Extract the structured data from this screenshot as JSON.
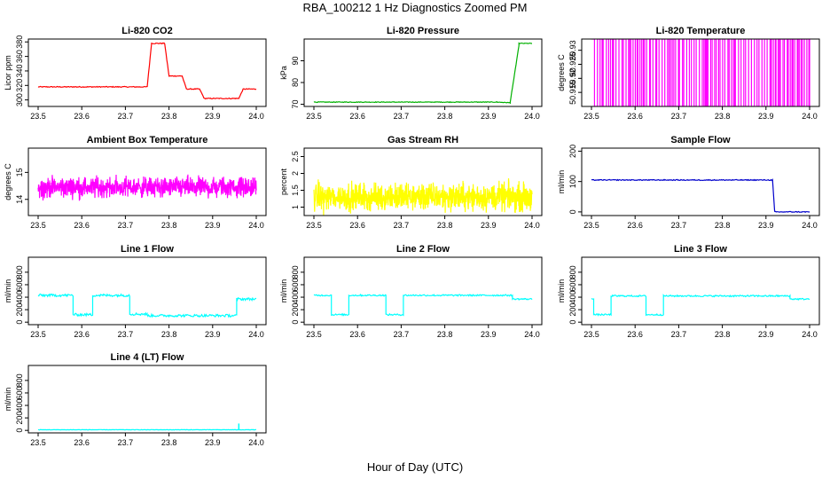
{
  "page": {
    "title": "RBA_100212  1 Hz Diagnostics Zoomed PM",
    "xlabel": "Hour of Day (UTC)"
  },
  "chart_data": [
    {
      "type": "line",
      "title": "Li-820 CO2",
      "ylabel": "Licor ppm",
      "color": "#ff0000",
      "xlim": [
        23.5,
        24.0
      ],
      "ylim": [
        291,
        384
      ],
      "xticks": [
        "23.5",
        "23.6",
        "23.7",
        "23.8",
        "23.9",
        "24.0"
      ],
      "yticks": [
        300,
        320,
        340,
        360,
        380
      ],
      "series": [
        {
          "name": "CO2",
          "noise": 0.6,
          "segments": [
            [
              23.5,
              23.75,
              318,
              318
            ],
            [
              23.75,
              23.76,
              318,
              378
            ],
            [
              23.76,
              23.79,
              378,
              378
            ],
            [
              23.79,
              23.8,
              378,
              333
            ],
            [
              23.8,
              23.83,
              333,
              333
            ],
            [
              23.83,
              23.84,
              333,
              315
            ],
            [
              23.84,
              23.87,
              315,
              315
            ],
            [
              23.87,
              23.88,
              315,
              303
            ],
            [
              23.88,
              23.96,
              302,
              302
            ],
            [
              23.96,
              23.97,
              302,
              315
            ],
            [
              23.97,
              24.0,
              315,
              315
            ]
          ]
        }
      ]
    },
    {
      "type": "line",
      "title": "Li-820 Pressure",
      "ylabel": "kPa",
      "color": "#00b000",
      "xlim": [
        23.5,
        24.0
      ],
      "ylim": [
        69,
        100
      ],
      "xticks": [
        "23.5",
        "23.6",
        "23.7",
        "23.8",
        "23.9",
        "24.0"
      ],
      "yticks": [
        70,
        80,
        90
      ],
      "series": [
        {
          "name": "Pressure",
          "noise": 0.15,
          "segments": [
            [
              23.5,
              23.92,
              71,
              71
            ],
            [
              23.92,
              23.95,
              71,
              70.7
            ],
            [
              23.95,
              23.97,
              71,
              97
            ],
            [
              23.97,
              24.0,
              98,
              98
            ]
          ]
        }
      ]
    },
    {
      "type": "line",
      "title": "Li-820 Temperature",
      "ylabel": "degrees C",
      "color": "#ff00ff",
      "xlim": [
        23.5,
        24.0
      ],
      "ylim": [
        50.91,
        50.934
      ],
      "xticks": [
        "23.5",
        "23.6",
        "23.7",
        "23.8",
        "23.9",
        "24.0"
      ],
      "yticks": [
        50.915,
        50.92,
        50.925,
        50.93
      ],
      "series": [
        {
          "name": "Temperature",
          "render": "binary",
          "low": 50.91,
          "high": 50.934
        }
      ]
    },
    {
      "type": "line",
      "title": "Ambient Box Temperature",
      "ylabel": "degrees C",
      "color": "#ff00ff",
      "xlim": [
        23.5,
        24.0
      ],
      "ylim": [
        13.4,
        15.9
      ],
      "xticks": [
        "23.5",
        "23.6",
        "23.7",
        "23.8",
        "23.9",
        "24.0"
      ],
      "yticks": [
        14.0,
        15.0
      ],
      "series": [
        {
          "name": "Box Temp",
          "render": "noise",
          "base": 14.45,
          "spread": 0.55
        }
      ]
    },
    {
      "type": "line",
      "title": "Gas Stream RH",
      "ylabel": "percent",
      "color": "#ffff00",
      "xlim": [
        23.5,
        24.0
      ],
      "ylim": [
        0.75,
        2.75
      ],
      "xticks": [
        "23.5",
        "23.6",
        "23.7",
        "23.8",
        "23.9",
        "24.0"
      ],
      "yticks": [
        1.0,
        1.5,
        2.0,
        2.5
      ],
      "series": [
        {
          "name": "RH",
          "render": "noise",
          "base": 1.3,
          "spread": 0.6
        }
      ]
    },
    {
      "type": "line",
      "title": "Sample Flow",
      "ylabel": "ml/min",
      "color": "#0000cc",
      "xlim": [
        23.5,
        24.0
      ],
      "ylim": [
        -12,
        210
      ],
      "xticks": [
        "23.5",
        "23.6",
        "23.7",
        "23.8",
        "23.9",
        "24.0"
      ],
      "yticks": [
        0,
        100,
        200
      ],
      "series": [
        {
          "name": "Sample Flow",
          "noise": 1.5,
          "segments": [
            [
              23.5,
              23.915,
              105,
              105
            ],
            [
              23.915,
              23.92,
              105,
              0
            ],
            [
              23.92,
              24.0,
              0,
              0
            ]
          ]
        }
      ]
    },
    {
      "type": "line",
      "title": "Line 1 Flow",
      "ylabel": "ml/min",
      "color": "#00ffff",
      "xlim": [
        23.5,
        24.0
      ],
      "ylim": [
        -40,
        1040
      ],
      "xticks": [
        "23.5",
        "23.6",
        "23.7",
        "23.8",
        "23.9",
        "24.0"
      ],
      "yticks": [
        0,
        200,
        400,
        600,
        800
      ],
      "series": [
        {
          "name": "Line 1",
          "noise": 20,
          "segments": [
            [
              23.5,
              23.58,
              430,
              430
            ],
            [
              23.58,
              23.625,
              120,
              120
            ],
            [
              23.625,
              23.71,
              430,
              430
            ],
            [
              23.71,
              23.75,
              130,
              130
            ],
            [
              23.75,
              23.955,
              105,
              105
            ],
            [
              23.955,
              24.0,
              370,
              370
            ]
          ]
        }
      ]
    },
    {
      "type": "line",
      "title": "Line 2 Flow",
      "ylabel": "ml/min",
      "color": "#00ffff",
      "xlim": [
        23.5,
        24.0
      ],
      "ylim": [
        -40,
        1040
      ],
      "xticks": [
        "23.5",
        "23.6",
        "23.7",
        "23.8",
        "23.9",
        "24.0"
      ],
      "yticks": [
        0,
        200,
        400,
        600,
        800
      ],
      "series": [
        {
          "name": "Line 2",
          "noise": 12,
          "segments": [
            [
              23.5,
              23.54,
              430,
              430
            ],
            [
              23.54,
              23.58,
              120,
              120
            ],
            [
              23.58,
              23.665,
              430,
              430
            ],
            [
              23.665,
              23.705,
              120,
              120
            ],
            [
              23.705,
              23.955,
              430,
              430
            ],
            [
              23.955,
              24.0,
              370,
              370
            ]
          ]
        }
      ]
    },
    {
      "type": "line",
      "title": "Line 3 Flow",
      "ylabel": "ml/min",
      "color": "#00ffff",
      "xlim": [
        23.5,
        24.0
      ],
      "ylim": [
        -40,
        1040
      ],
      "xticks": [
        "23.5",
        "23.6",
        "23.7",
        "23.8",
        "23.9",
        "24.0"
      ],
      "yticks": [
        0,
        200,
        400,
        600,
        800
      ],
      "series": [
        {
          "name": "Line 3",
          "noise": 12,
          "segments": [
            [
              23.5,
              23.505,
              380,
              380
            ],
            [
              23.505,
              23.545,
              120,
              120
            ],
            [
              23.545,
              23.625,
              420,
              420
            ],
            [
              23.625,
              23.665,
              120,
              120
            ],
            [
              23.665,
              23.955,
              420,
              420
            ],
            [
              23.955,
              24.0,
              370,
              370
            ]
          ]
        }
      ]
    },
    {
      "type": "line",
      "title": "Line 4 (LT) Flow",
      "ylabel": "ml/min",
      "color": "#00ffff",
      "xlim": [
        23.5,
        24.0
      ],
      "ylim": [
        -40,
        1040
      ],
      "xticks": [
        "23.5",
        "23.6",
        "23.7",
        "23.8",
        "23.9",
        "24.0"
      ],
      "yticks": [
        0,
        200,
        400,
        600,
        800
      ],
      "series": [
        {
          "name": "Line 4",
          "noise": 3,
          "spikes": [
            [
              23.96,
              110
            ]
          ],
          "segments": [
            [
              23.5,
              24.0,
              10,
              10
            ]
          ]
        }
      ]
    }
  ]
}
